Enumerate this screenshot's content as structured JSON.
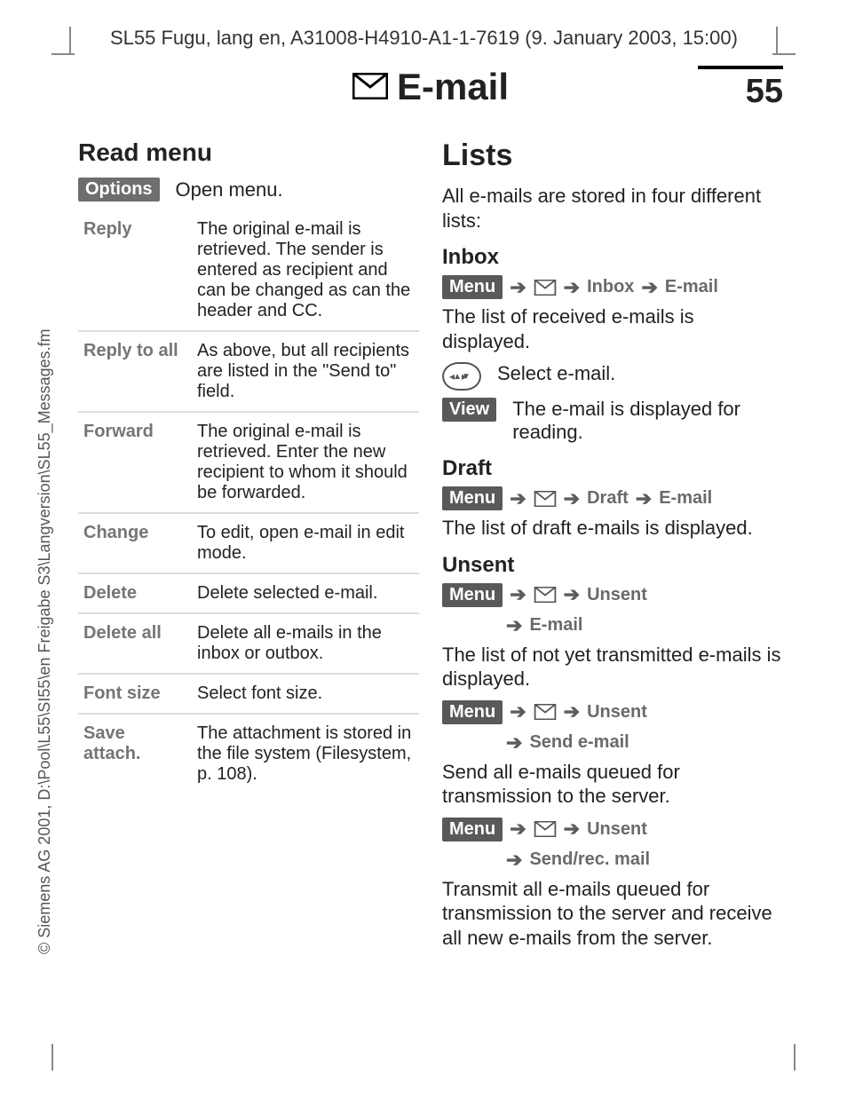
{
  "doc_header": "SL55 Fugu, lang en, A31008-H4910-A1-1-7619 (9. January 2003, 15:00)",
  "side_text": "© Siemens AG 2001, D:\\Pool\\L55\\SI55\\en Freigabe S3\\Langversion\\SL55_Messages.fm",
  "page_title": "E-mail",
  "page_number": "55",
  "left": {
    "section_title": "Read menu",
    "options_btn": "Options",
    "options_caption": "Open menu.",
    "rows": [
      {
        "k": "Reply",
        "v": "The original e-mail is retrieved. The sender is entered as recipient and can be changed as can the header and CC."
      },
      {
        "k": "Reply to all",
        "v": "As above, but all recipients are listed in the \"Send to\" field."
      },
      {
        "k": "Forward",
        "v": "The original e-mail is retrieved. Enter the new recipient to whom it should be forwarded."
      },
      {
        "k": "Change",
        "v": "To edit, open e-mail in edit mode."
      },
      {
        "k": "Delete",
        "v": "Delete selected e-mail."
      },
      {
        "k": "Delete all",
        "v": "Delete all e-mails in the inbox or outbox."
      },
      {
        "k": "Font size",
        "v": "Select font size."
      },
      {
        "k": "Save attach.",
        "v": "The attachment is stored in the file system (Filesystem, p. 108)."
      }
    ]
  },
  "right": {
    "lists_title": "Lists",
    "lists_intro": "All e-mails are stored in four different lists:",
    "menu_label": "Menu",
    "view_label": "View",
    "inbox": {
      "title": "Inbox",
      "path": [
        "Inbox",
        "E-mail"
      ],
      "desc": "The list of received e-mails is displayed.",
      "select": "Select e-mail.",
      "view_desc": "The e-mail is displayed for reading."
    },
    "draft": {
      "title": "Draft",
      "path": [
        "Draft",
        "E-mail"
      ],
      "desc": "The list of draft e-mails is displayed."
    },
    "unsent": {
      "title": "Unsent",
      "path1": [
        "Unsent",
        "E-mail"
      ],
      "desc1": "The list of not yet transmitted e-mails is displayed.",
      "path2": [
        "Unsent",
        "Send e-mail"
      ],
      "desc2": "Send all e-mails queued for transmission to the server.",
      "path3": [
        "Unsent",
        "Send/rec. mail"
      ],
      "desc3": "Transmit all e-mails queued for transmission to the server and receive all new e-mails from the server."
    }
  },
  "style": {
    "softkey_bg": "#6e6e6e",
    "muted": "#757575",
    "body_fontsize": 22,
    "title_fontsize": 42
  }
}
